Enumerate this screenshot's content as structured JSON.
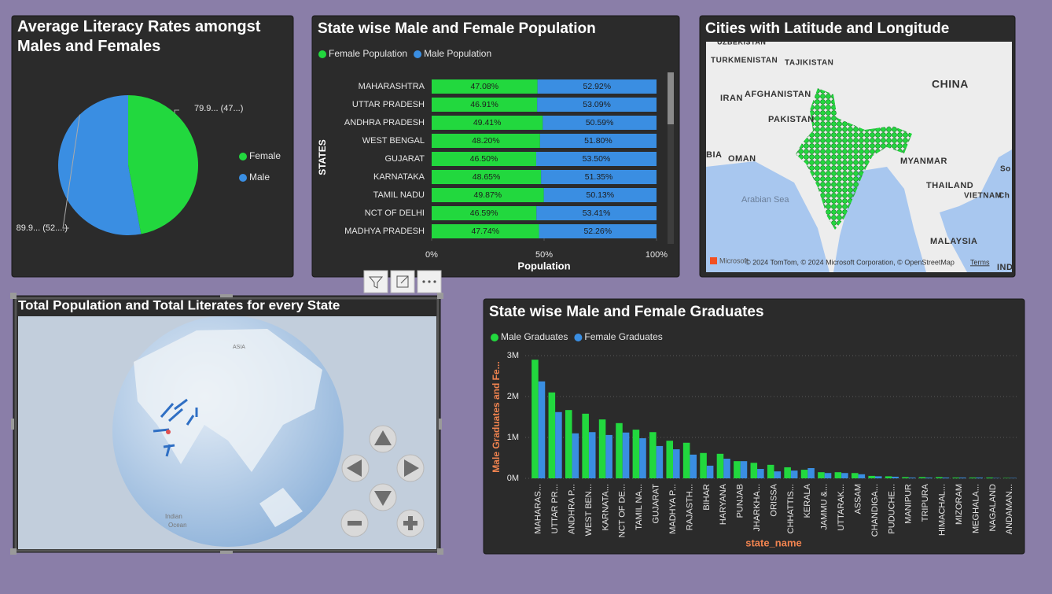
{
  "chart_data": [
    {
      "type": "pie",
      "title": "Average Literacy Rates amongst Males and Females",
      "categories": [
        "Female",
        "Male"
      ],
      "values": [
        79.9,
        89.9
      ],
      "value_labels": [
        "79.9... (47...)",
        "89.9... (52....)"
      ],
      "colors": [
        "#22d83e",
        "#3a8ee2"
      ],
      "legend": "right"
    },
    {
      "type": "bar",
      "orientation": "horizontal",
      "stacked": true,
      "title": "State wise Male and Female Population",
      "categories": [
        "MAHARASHTRA",
        "UTTAR PRADESH",
        "ANDHRA PRADESH",
        "WEST BENGAL",
        "GUJARAT",
        "KARNATAKA",
        "TAMIL NADU",
        "NCT OF DELHI",
        "MADHYA PRADESH"
      ],
      "series": [
        {
          "name": "Female Population",
          "color": "#22d83e",
          "values": [
            47.08,
            46.91,
            49.41,
            48.2,
            46.5,
            48.65,
            49.87,
            46.59,
            47.74
          ],
          "value_labels": [
            "47.08%",
            "46.91%",
            "49.41%",
            "48.20%",
            "46.50%",
            "48.65%",
            "49.87%",
            "46.59%",
            "47.74%"
          ]
        },
        {
          "name": "Male Population",
          "color": "#3a8ee2",
          "values": [
            52.92,
            53.09,
            50.59,
            51.8,
            53.5,
            51.35,
            50.13,
            53.41,
            52.26
          ],
          "value_labels": [
            "52.92%",
            "53.09%",
            "50.59%",
            "51.80%",
            "53.50%",
            "51.35%",
            "50.13%",
            "53.41%",
            "52.26%"
          ]
        }
      ],
      "xlim": [
        0,
        100
      ],
      "xticks": [
        {
          "value": 0,
          "label": "0%"
        },
        {
          "value": 50,
          "label": "50%"
        },
        {
          "value": 100,
          "label": "100%"
        }
      ],
      "x_label": "Population",
      "y_label": "STATES",
      "legend": "top-left"
    },
    {
      "type": "bar",
      "orientation": "vertical",
      "stacked": false,
      "title": "State wise Male and Female Graduates",
      "categories": [
        "MAHARAS...",
        "UTTAR PR...",
        "ANDHRA P...",
        "WEST BEN...",
        "KARNATA...",
        "NCT OF DE...",
        "TAMIL NA...",
        "GUJARAT",
        "MADHYA P...",
        "RAJASTH...",
        "BIHAR",
        "HARYANA",
        "PUNJAB",
        "JHARKHA...",
        "ORISSA",
        "CHHATTIS...",
        "KERALA",
        "JAMMU &...",
        "UTTARAK...",
        "ASSAM",
        "CHANDIGA...",
        "PUDUCHE...",
        "MANIPUR",
        "TRIPURA",
        "HIMACHAL...",
        "MIZORAM",
        "MEGHALA...",
        "NAGALAND",
        "ANDAMAN..."
      ],
      "series": [
        {
          "name": "Male Graduates",
          "color": "#22d83e",
          "values": [
            2900000,
            2100000,
            1670000,
            1580000,
            1440000,
            1350000,
            1190000,
            1130000,
            920000,
            870000,
            620000,
            600000,
            420000,
            380000,
            330000,
            270000,
            210000,
            150000,
            150000,
            130000,
            60000,
            50000,
            30000,
            30000,
            30000,
            20000,
            20000,
            20000,
            10000
          ]
        },
        {
          "name": "Female Graduates",
          "color": "#3a8ee2",
          "values": [
            2370000,
            1620000,
            1100000,
            1130000,
            1060000,
            1120000,
            980000,
            790000,
            710000,
            580000,
            310000,
            480000,
            420000,
            230000,
            170000,
            190000,
            250000,
            130000,
            130000,
            100000,
            50000,
            40000,
            20000,
            20000,
            20000,
            20000,
            20000,
            10000,
            10000
          ]
        }
      ],
      "ylim": [
        0,
        3000000
      ],
      "yticks": [
        {
          "value": 0,
          "label": "0M"
        },
        {
          "value": 1000000,
          "label": "1M"
        },
        {
          "value": 2000000,
          "label": "2M"
        },
        {
          "value": 3000000,
          "label": "3M"
        }
      ],
      "grid": true,
      "x_label": "state_name",
      "y_label": "Male Graduates and Fe...",
      "legend": "top-left"
    }
  ],
  "map": {
    "title": "Cities with Latitude and Longitude",
    "labels": [
      "UZBEKISTAN",
      "TURKMENISTAN",
      "TAJIKISTAN",
      "CHINA",
      "IRAN",
      "AFGHANISTAN",
      "PAKISTAN",
      "BIA",
      "OMAN",
      "MYANMAR",
      "Arabian Sea",
      "THAILAND",
      "VIETNAM",
      "MALAYSIA",
      "IND",
      "So",
      "Ch"
    ],
    "logo": "Microsoft",
    "attribution": "© 2024 TomTom, © 2024 Microsoft Corporation, © OpenStreetMap",
    "terms": "Terms"
  },
  "globe": {
    "title": "Total Population and Total Literates for every State",
    "labels": [
      "ASIA",
      "Indian",
      "Ocean"
    ]
  }
}
